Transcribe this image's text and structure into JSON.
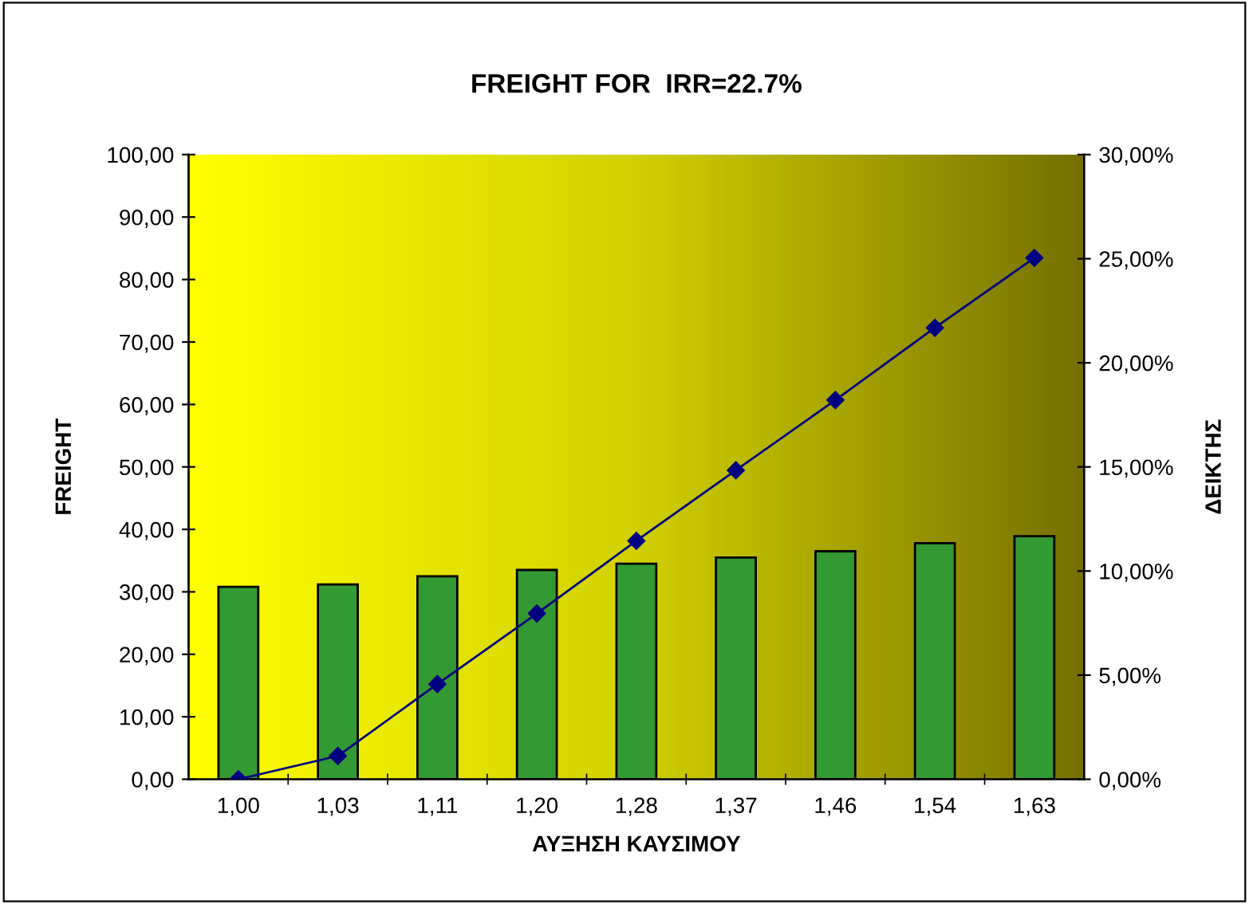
{
  "chart_data": {
    "type": "bar",
    "title": "FREIGHT FOR  IRR=22.7%",
    "xlabel": "ΑΥΞΗΣΗ ΚΑΥΣΙΜΟΥ",
    "ylabel": "FREIGHT",
    "y2label": "ΔΕΙΚΤΗΣ",
    "categories": [
      "1,00",
      "1,03",
      "1,11",
      "1,20",
      "1,28",
      "1,37",
      "1,46",
      "1,54",
      "1,63"
    ],
    "series": [
      {
        "color": "#339933",
        "values": [
          30.8,
          31.2,
          32.5,
          33.5,
          34.5,
          35.5,
          36.5,
          37.8,
          38.9
        ]
      },
      {
        "type": "line",
        "axis": "y2",
        "color": "#000080",
        "marker": "diamond",
        "line_style": "solid",
        "values": [
          0.0,
          1.12,
          4.57,
          7.96,
          11.45,
          14.84,
          18.21,
          21.68,
          25.04
        ]
      }
    ],
    "ylim": [
      0,
      100
    ],
    "yticks": [
      {
        "value": 0,
        "label": "0,00"
      },
      {
        "value": 10,
        "label": "10,00"
      },
      {
        "value": 20,
        "label": "20,00"
      },
      {
        "value": 30,
        "label": "30,00"
      },
      {
        "value": 40,
        "label": "40,00"
      },
      {
        "value": 50,
        "label": "50,00"
      },
      {
        "value": 60,
        "label": "60,00"
      },
      {
        "value": 70,
        "label": "70,00"
      },
      {
        "value": 80,
        "label": "80,00"
      },
      {
        "value": 90,
        "label": "90,00"
      },
      {
        "value": 100,
        "label": "100,00"
      }
    ],
    "y2lim": [
      0,
      30
    ],
    "y2ticks": [
      {
        "value": 0,
        "label": "0,00%"
      },
      {
        "value": 5,
        "label": "5,00%"
      },
      {
        "value": 10,
        "label": "10,00%"
      },
      {
        "value": 15,
        "label": "15,00%"
      },
      {
        "value": 20,
        "label": "20,00%"
      },
      {
        "value": 25,
        "label": "25,00%"
      },
      {
        "value": 30,
        "label": "30,00%"
      }
    ],
    "grid": false,
    "legend": false
  }
}
